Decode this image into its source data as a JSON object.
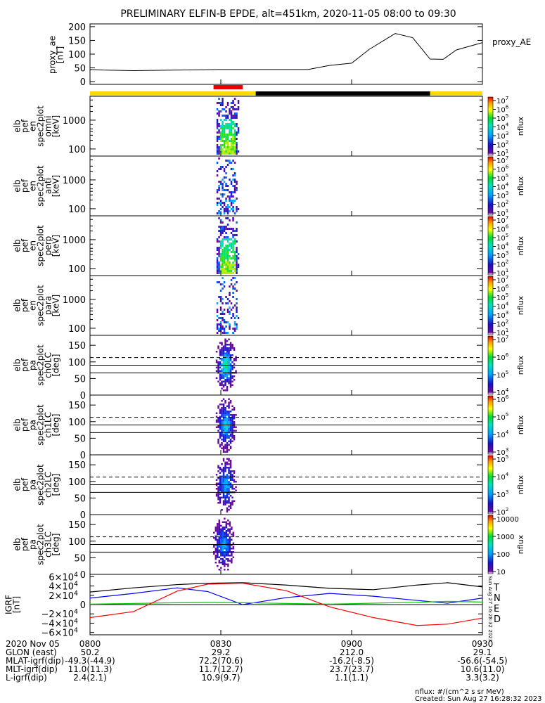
{
  "title": "PRELIMINARY ELFIN-B EPDE, alt=451km, 2020-11-05 08:00 to 09:30",
  "chart_data": [
    {
      "type": "line",
      "panel": "proxy_ae",
      "ylabel_lines": [
        "proxy_ae",
        "[nT]"
      ],
      "legend": "proxy_AE",
      "ylim": [
        -10,
        210
      ],
      "yticks": [
        0,
        50,
        100,
        150,
        200
      ],
      "x_minutes": [
        0,
        3,
        10,
        20,
        30,
        40,
        50,
        55,
        60,
        64,
        70,
        74,
        78,
        81,
        84,
        90
      ],
      "values": [
        44,
        42,
        40,
        42,
        44,
        44,
        44,
        59,
        67,
        117,
        175,
        160,
        82,
        81,
        115,
        142
      ]
    },
    {
      "type": "table",
      "panel": "day_night_bar",
      "segments": [
        {
          "start_minute": 0,
          "end_minute": 38,
          "label": "day",
          "color": "#ffd700"
        },
        {
          "start_minute": 38,
          "end_minute": 78,
          "label": "night",
          "color": "#000000"
        },
        {
          "start_minute": 78,
          "end_minute": 90,
          "label": "day",
          "color": "#ffd700"
        }
      ],
      "science_zone": {
        "start_minute": 28,
        "end_minute": 35,
        "color": "#ee0000"
      }
    },
    {
      "type": "heatmap",
      "panel": "omni",
      "ylabel_lines": [
        "elb",
        "pef",
        "en",
        "spec2plot",
        "omni",
        "[keV]"
      ],
      "yscale": "log",
      "yticks": [
        "100",
        "1000"
      ],
      "colorbar": {
        "label": "nflux",
        "exponents": [
          "7",
          "6",
          "5",
          "4",
          "3",
          "2",
          "1"
        ]
      },
      "active_minutes": [
        29,
        34
      ]
    },
    {
      "type": "heatmap",
      "panel": "anti",
      "ylabel_lines": [
        "elb",
        "pef",
        "en",
        "spec2plot",
        "anti",
        "[keV]"
      ],
      "yscale": "log",
      "yticks": [
        "100",
        "1000"
      ],
      "colorbar": {
        "label": "nflux",
        "exponents": [
          "7",
          "6",
          "5",
          "4",
          "3",
          "2",
          "1"
        ]
      },
      "active_minutes": [
        29,
        34
      ]
    },
    {
      "type": "heatmap",
      "panel": "perp",
      "ylabel_lines": [
        "elb",
        "pef",
        "en",
        "spec2plot",
        "perp",
        "[keV]"
      ],
      "yscale": "log",
      "yticks": [
        "100",
        "1000"
      ],
      "colorbar": {
        "label": "nflux",
        "exponents": [
          "7",
          "6",
          "5",
          "4",
          "3",
          "2",
          "1"
        ]
      },
      "active_minutes": [
        29,
        34
      ]
    },
    {
      "type": "heatmap",
      "panel": "para",
      "ylabel_lines": [
        "elb",
        "pef",
        "en",
        "spec2plot",
        "para",
        "[keV]"
      ],
      "yscale": "log",
      "yticks": [
        "100",
        "1000"
      ],
      "colorbar": {
        "label": "nflux",
        "exponents": [
          "7",
          "6",
          "5",
          "4",
          "3",
          "2",
          "1"
        ]
      },
      "active_minutes": [
        29,
        34
      ]
    },
    {
      "type": "heatmap",
      "panel": "ch0LC",
      "ylabel_lines": [
        "elb",
        "pef",
        "pa",
        "spec2plot",
        "ch0LC",
        "[deg]"
      ],
      "ylim": [
        0,
        180
      ],
      "yticks": [
        0,
        50,
        100,
        150
      ],
      "ref_lines_deg": [
        67,
        90,
        113
      ],
      "colorbar": {
        "label": "nflux",
        "exponents": [
          "7",
          "6",
          "5",
          "4"
        ]
      },
      "active_minutes": [
        29,
        33
      ]
    },
    {
      "type": "heatmap",
      "panel": "ch1LC",
      "ylabel_lines": [
        "elb",
        "pef",
        "pa",
        "spec2plot",
        "ch1LC",
        "[deg]"
      ],
      "ylim": [
        0,
        180
      ],
      "yticks": [
        0,
        50,
        100,
        150
      ],
      "ref_lines_deg": [
        67,
        90,
        113
      ],
      "colorbar": {
        "label": "nflux",
        "exponents": [
          "6",
          "5",
          "4",
          "3"
        ]
      },
      "active_minutes": [
        29,
        33
      ]
    },
    {
      "type": "heatmap",
      "panel": "ch2LC",
      "ylabel_lines": [
        "elb",
        "pef",
        "pa",
        "spec2plot",
        "ch2LC",
        "[deg]"
      ],
      "ylim": [
        0,
        180
      ],
      "yticks": [
        0,
        50,
        100,
        150
      ],
      "ref_lines_deg": [
        67,
        90,
        113
      ],
      "colorbar": {
        "label": "nflux",
        "exponents": [
          "5",
          "4",
          "3",
          "2"
        ]
      },
      "active_minutes": [
        29,
        33
      ]
    },
    {
      "type": "heatmap",
      "panel": "ch3LC",
      "ylabel_lines": [
        "elb",
        "pef",
        "pa",
        "spec2plot",
        "ch3LC",
        "[deg]"
      ],
      "ylim": [
        0,
        180
      ],
      "yticks": [
        0,
        50,
        100,
        150
      ],
      "ref_lines_deg": [
        67,
        90,
        113
      ],
      "colorbar": {
        "label": "nflux",
        "ticks": [
          "10000",
          "1000",
          "100",
          "10"
        ]
      },
      "active_minutes": [
        28,
        33
      ]
    },
    {
      "type": "line",
      "panel": "igrf",
      "ylabel_lines": [
        "IGRF",
        "[nT]"
      ],
      "ylim": [
        -65000,
        65000
      ],
      "yticks": [
        {
          "value": 60000,
          "mantissa": "6",
          "sign": ""
        },
        {
          "value": 40000,
          "mantissa": "4",
          "sign": ""
        },
        {
          "value": 20000,
          "mantissa": "2",
          "sign": ""
        },
        {
          "value": 0,
          "mantissa": "0",
          "sign": ""
        },
        {
          "value": -20000,
          "mantissa": "2",
          "sign": "−"
        },
        {
          "value": -40000,
          "mantissa": "4",
          "sign": "−"
        },
        {
          "value": -60000,
          "mantissa": "6",
          "sign": "−"
        }
      ],
      "x_minutes": [
        0,
        10,
        20,
        27,
        35,
        45,
        55,
        65,
        75,
        82,
        90
      ],
      "series": [
        {
          "name": "T",
          "color": "#000000",
          "values": [
            27000,
            36000,
            43000,
            46000,
            47000,
            42000,
            35000,
            32000,
            42000,
            47000,
            38000
          ]
        },
        {
          "name": "N",
          "color": "#0000ff",
          "values": [
            14000,
            24000,
            36000,
            28000,
            0,
            15000,
            24000,
            18000,
            9000,
            3000,
            14000
          ]
        },
        {
          "name": "E",
          "color": "#00cc00",
          "values": [
            1000,
            2500,
            4000,
            4500,
            4000,
            2500,
            1000,
            3000,
            5000,
            7000,
            5500
          ]
        },
        {
          "name": "D",
          "color": "#ff0000",
          "values": [
            -28000,
            -15000,
            29000,
            44000,
            46000,
            30000,
            -5000,
            -28000,
            -45000,
            -42000,
            -29000
          ]
        }
      ],
      "side_text": "Sun Aug 27 16:28:32 2023"
    }
  ],
  "axis_table": {
    "rows": [
      {
        "label": "2020 Nov 05",
        "values": [
          "0800",
          "0830",
          "0900",
          "0930"
        ]
      },
      {
        "label": "GLON (east)",
        "values": [
          "50.2",
          "29.2",
          "212.0",
          "29.1"
        ]
      },
      {
        "label": "MLAT-igrf(dip)",
        "values": [
          "-49.3(-44.9)",
          "72.2(70.6)",
          "-16.2(-8.5)",
          "-56.6(-54.5)"
        ]
      },
      {
        "label": "MLT-igrf(dip)",
        "values": [
          "11.0(11.3)",
          "11.7(12.7)",
          "23.7(23.7)",
          "10.6(11.0)"
        ]
      },
      {
        "label": "L-igrf(dip)",
        "values": [
          "2.4(2.1)",
          "10.9(9.7)",
          "1.1(1.1)",
          "3.3(3.2)"
        ]
      }
    ]
  },
  "footer": {
    "units": "nflux: #/(cm^2 s sr MeV)",
    "created": "Created: Sun Aug 27 16:28:32 2023"
  }
}
